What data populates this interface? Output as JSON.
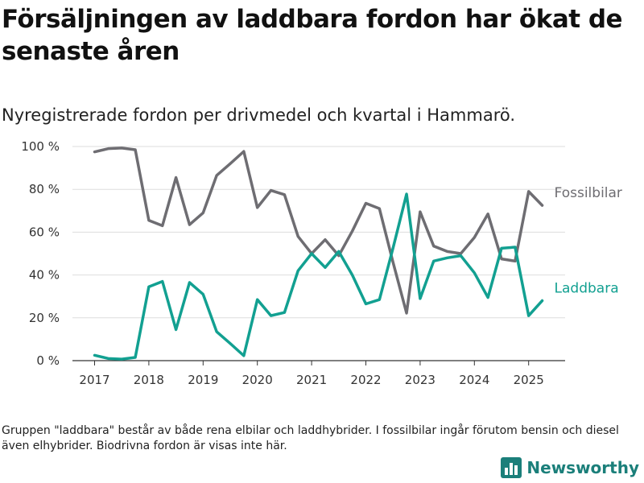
{
  "title": "Försäljningen av laddbara fordon har ökat de senaste åren",
  "subtitle": "Nyregistrerade fordon per drivmedel och kvartal i Hammarö.",
  "footnote": "Gruppen \"laddbara\" består av både rena elbilar och laddhybrider. I fossilbilar ingår förutom bensin och diesel även elhybrider. Biodrivna fordon är visas inte här.",
  "brand": {
    "name": "Newsworthy"
  },
  "colors": {
    "fossil": "#6e6d72",
    "laddbara": "#12a091",
    "grid": "#dddddd",
    "axis": "#333333",
    "brand": "#1b7f7a"
  },
  "chart_data": {
    "type": "line",
    "x_unit": "quarter",
    "x": [
      "2017-Q1",
      "2017-Q2",
      "2017-Q3",
      "2017-Q4",
      "2018-Q1",
      "2018-Q2",
      "2018-Q3",
      "2018-Q4",
      "2019-Q1",
      "2019-Q2",
      "2019-Q3",
      "2019-Q4",
      "2020-Q1",
      "2020-Q2",
      "2020-Q3",
      "2020-Q4",
      "2021-Q1",
      "2021-Q2",
      "2021-Q3",
      "2021-Q4",
      "2022-Q1",
      "2022-Q2",
      "2022-Q3",
      "2022-Q4",
      "2023-Q1",
      "2023-Q2",
      "2023-Q3",
      "2023-Q4",
      "2024-Q1",
      "2024-Q2",
      "2024-Q3",
      "2024-Q4",
      "2025-Q1",
      "2025-Q2"
    ],
    "series": [
      {
        "name": "Fossilbilar",
        "values": [
          97.5,
          99,
          99.3,
          98.5,
          65.5,
          63,
          85.5,
          63.5,
          69,
          86.5,
          92,
          97.7,
          71.5,
          79.5,
          77.5,
          58,
          50,
          56.5,
          49,
          60.5,
          73.5,
          71,
          46,
          22.2,
          69.5,
          53.5,
          51,
          50,
          57.5,
          68.5,
          47.5,
          46.5,
          79,
          72.5
        ]
      },
      {
        "name": "Laddbara",
        "values": [
          2.5,
          1,
          0.7,
          1.5,
          34.5,
          37,
          14.5,
          36.5,
          31,
          13.5,
          8,
          2.3,
          28.5,
          21,
          22.5,
          42,
          50,
          43.5,
          51,
          40,
          26.5,
          28.5,
          52.5,
          77.8,
          29,
          46.5,
          48,
          49,
          41,
          29.5,
          52.5,
          53,
          21,
          28
        ]
      }
    ],
    "y_ticks": [
      "0 %",
      "20 %",
      "40 %",
      "60 %",
      "80 %",
      "100 %"
    ],
    "y_tick_values": [
      0,
      20,
      40,
      60,
      80,
      100
    ],
    "x_ticks": [
      "2017",
      "2018",
      "2019",
      "2020",
      "2021",
      "2022",
      "2023",
      "2024",
      "2025"
    ],
    "ylim": [
      0,
      100
    ],
    "grid": true,
    "legend": "inline labels at line ends"
  }
}
